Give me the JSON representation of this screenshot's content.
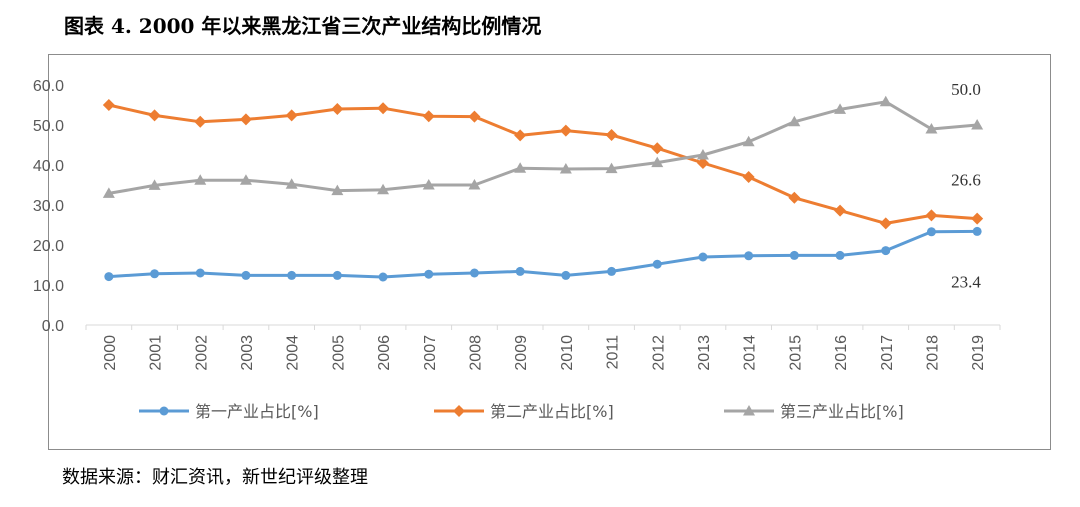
{
  "title": "图表 4. 2000 年以来黑龙江省三次产业结构比例情况",
  "source": "数据来源：财汇资讯，新世纪评级整理",
  "chart_data": {
    "type": "line",
    "title": "",
    "xlabel": "",
    "ylabel": "",
    "ylim": [
      0,
      60
    ],
    "yticks": [
      "0.0",
      "10.0",
      "20.0",
      "30.0",
      "40.0",
      "50.0",
      "60.0"
    ],
    "grid": false,
    "legend_position": "bottom",
    "categories": [
      "2000",
      "2001",
      "2002",
      "2003",
      "2004",
      "2005",
      "2006",
      "2007",
      "2008",
      "2009",
      "2010",
      "2011",
      "2012",
      "2013",
      "2014",
      "2015",
      "2016",
      "2017",
      "2018",
      "2019"
    ],
    "series": [
      {
        "name": "第一产业占比[%]",
        "color": "#5b9bd5",
        "marker": "circle",
        "values": [
          12.1,
          12.8,
          13.0,
          12.4,
          12.4,
          12.4,
          12.0,
          12.7,
          13.0,
          13.4,
          12.4,
          13.4,
          15.2,
          17.0,
          17.3,
          17.4,
          17.4,
          18.6,
          23.3,
          23.4
        ]
      },
      {
        "name": "第二产业占比[%]",
        "color": "#ed7d31",
        "marker": "diamond",
        "values": [
          55.0,
          52.4,
          50.8,
          51.4,
          52.4,
          54.0,
          54.2,
          52.2,
          52.1,
          47.4,
          48.6,
          47.5,
          44.2,
          40.5,
          37.0,
          31.8,
          28.6,
          25.4,
          27.4,
          26.6
        ]
      },
      {
        "name": "第三产业占比[%]",
        "color": "#a5a5a5",
        "marker": "triangle",
        "values": [
          32.9,
          34.9,
          36.2,
          36.2,
          35.2,
          33.6,
          33.8,
          35.0,
          35.0,
          39.2,
          39.0,
          39.1,
          40.6,
          42.5,
          45.8,
          50.8,
          53.9,
          55.8,
          49.0,
          50.0
        ]
      }
    ],
    "annotations": [
      {
        "text": "50.0",
        "series": 2,
        "index": 19
      },
      {
        "text": "26.6",
        "series": 1,
        "index": 19
      },
      {
        "text": "23.4",
        "series": 0,
        "index": 19
      }
    ]
  }
}
